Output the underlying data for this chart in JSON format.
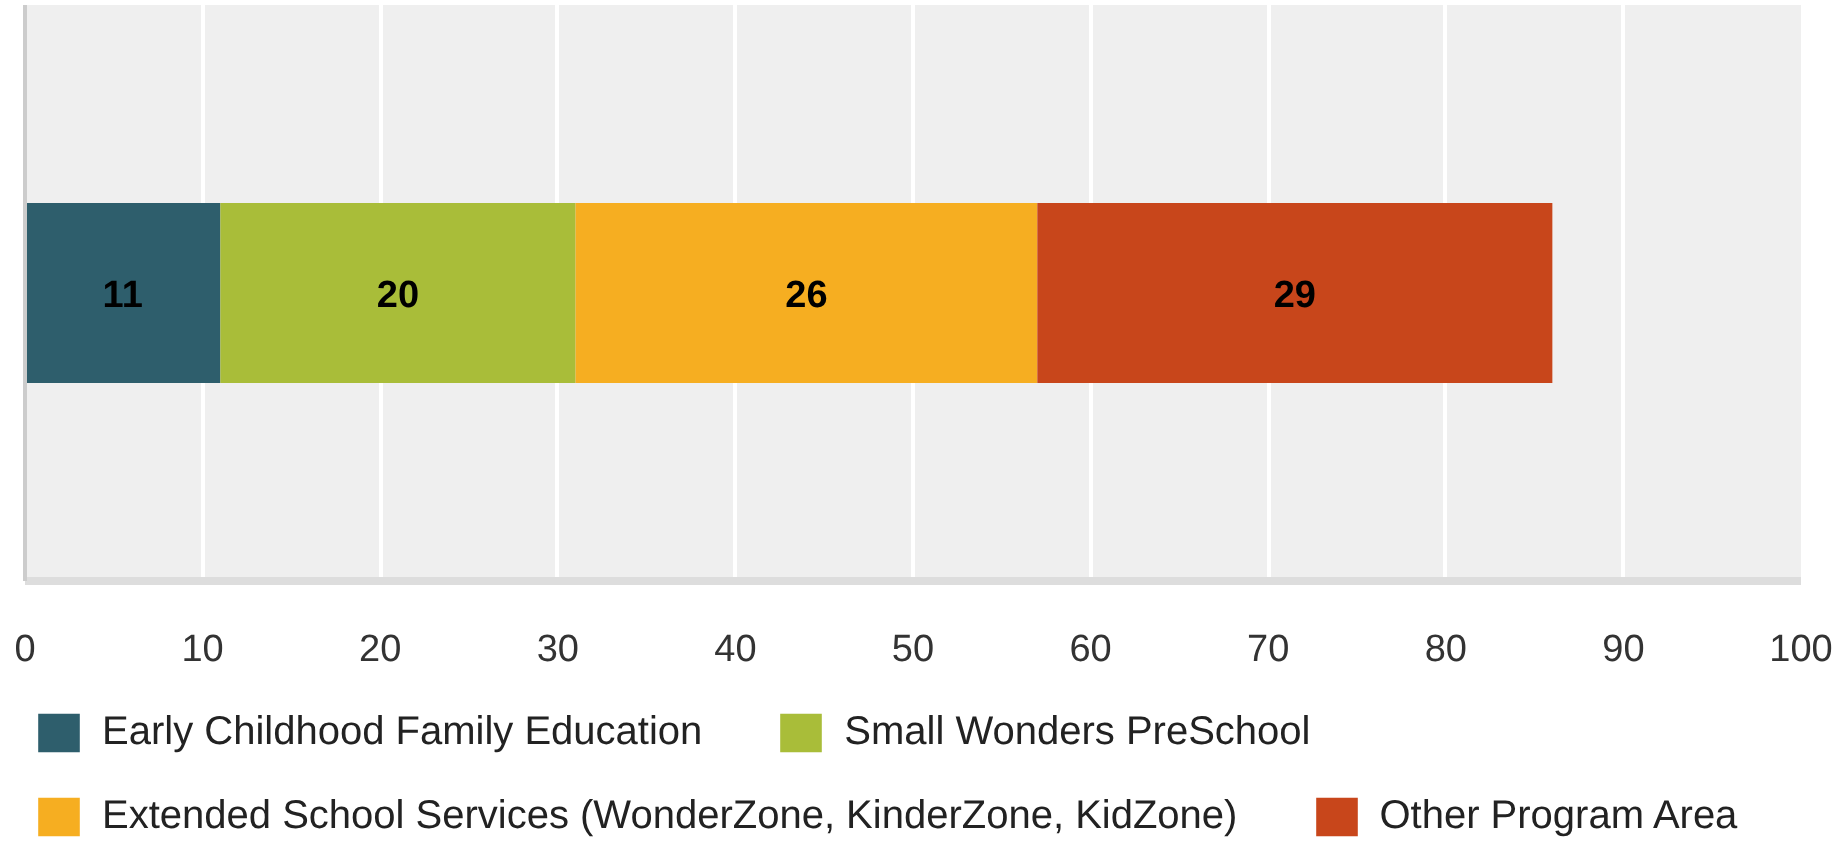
{
  "chart_data": {
    "type": "bar",
    "orientation": "horizontal",
    "stacked": true,
    "categories": [
      null
    ],
    "series": [
      {
        "name": "Early Childhood Family Education",
        "color": "#2e5e6c",
        "values": [
          11
        ]
      },
      {
        "name": "Small Wonders PreSchool",
        "color": "#a9bd39",
        "values": [
          20
        ]
      },
      {
        "name": "Extended School Services (WonderZone, KinderZone, KidZone)",
        "color": "#f6ae21",
        "values": [
          26
        ]
      },
      {
        "name": "Other Program Area",
        "color": "#c8461b",
        "values": [
          29
        ]
      }
    ],
    "xlim": [
      0,
      100
    ],
    "xticks": [
      0,
      10,
      20,
      30,
      40,
      50,
      60,
      70,
      80,
      90,
      100
    ],
    "grid": "x",
    "legend": "bottom",
    "data_labels": true
  }
}
